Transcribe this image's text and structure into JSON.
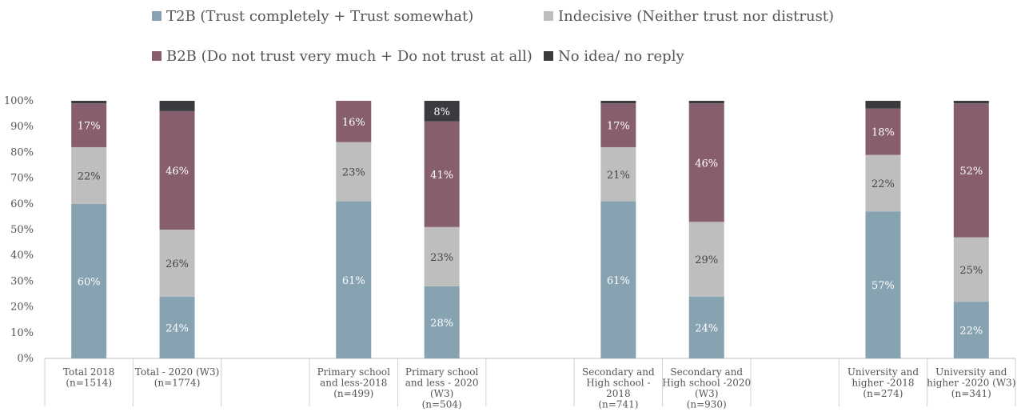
{
  "chart_data": {
    "type": "bar",
    "stacked": true,
    "ylim": [
      0,
      100
    ],
    "yticks": [
      "0%",
      "10%",
      "20%",
      "30%",
      "40%",
      "50%",
      "60%",
      "70%",
      "80%",
      "90%",
      "100%"
    ],
    "legend_position": "top",
    "categories": [
      [
        "Total 2018",
        "(n=1514)"
      ],
      [
        "Total - 2020 (W3)",
        "(n=1774)"
      ],
      [],
      [
        "Primary school",
        "and less-2018",
        "(n=499)"
      ],
      [
        "Primary school",
        "and less - 2020",
        "(W3)",
        "(n=504)"
      ],
      [],
      [
        "Secondary and",
        "High school -",
        "2018",
        "(n=741)"
      ],
      [
        "Secondary and",
        "High school -2020",
        "(W3)",
        "(n=930)"
      ],
      [],
      [
        "University and",
        "higher -2018",
        "(n=274)"
      ],
      [
        "University and",
        "higher -2020 (W3)",
        "(n=341)"
      ]
    ],
    "series": [
      {
        "name": "T2B (Trust completely + Trust somewhat)",
        "color": "#87a2b0",
        "label_color": "#ffffff",
        "values": [
          60,
          24,
          null,
          61,
          28,
          null,
          61,
          24,
          null,
          57,
          22
        ]
      },
      {
        "name": "Indecisive (Neither trust nor distrust)",
        "color": "#bebebe",
        "label_color": "#444444",
        "values": [
          22,
          26,
          null,
          23,
          23,
          null,
          21,
          29,
          null,
          22,
          25
        ]
      },
      {
        "name": "B2B (Do not trust very much + Do not trust at all)",
        "color": "#875e6e",
        "label_color": "#ffffff",
        "values": [
          17,
          46,
          null,
          16,
          41,
          null,
          17,
          46,
          null,
          18,
          52
        ]
      },
      {
        "name": "No idea/ no reply",
        "color": "#3a3b3f",
        "label_color": "#ffffff",
        "values": [
          2,
          4,
          null,
          1,
          8,
          null,
          2,
          2,
          null,
          3,
          1
        ]
      }
    ]
  }
}
